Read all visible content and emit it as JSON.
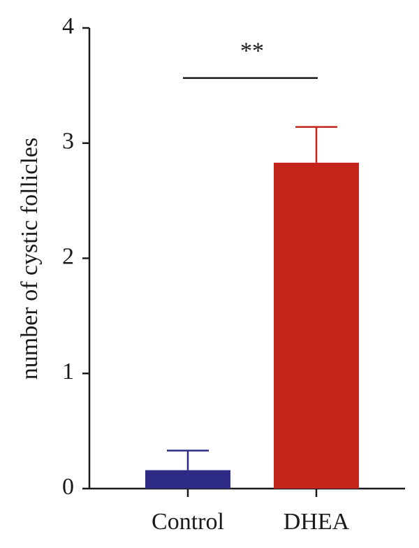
{
  "chart_data": {
    "type": "bar",
    "y_label": "number of cystic follicles",
    "categories": [
      "Control",
      "DHEA"
    ],
    "values": [
      0.16,
      2.83
    ],
    "errors": [
      0.17,
      0.31
    ],
    "colors": [
      "#2e2b87",
      "#c3251a"
    ],
    "ylim": [
      0,
      4
    ],
    "yticks": [
      0,
      1,
      2,
      3,
      4
    ],
    "annotation": "**",
    "grid": false
  }
}
